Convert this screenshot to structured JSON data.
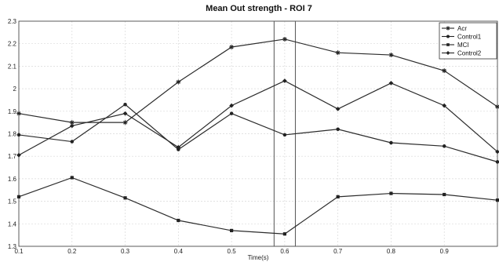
{
  "chart_data": {
    "type": "line",
    "title": "Mean Out strength - ROI 7",
    "xlabel": "Time(s)",
    "ylabel": "",
    "x": [
      0.1,
      0.2,
      0.3,
      0.4,
      0.5,
      0.6,
      0.7,
      0.8,
      0.9,
      1.0
    ],
    "xlim": [
      0.1,
      1.0
    ],
    "ylim": [
      1.3,
      2.3
    ],
    "xticks": [
      "0.1",
      "0.2",
      "0.3",
      "0.4",
      "0.5",
      "0.6",
      "0.7",
      "0.8",
      "0.9"
    ],
    "yticks": [
      "1.3",
      "1.4",
      "1.5",
      "1.6",
      "1.7",
      "1.8",
      "1.9",
      "2",
      "2.1",
      "2.2",
      "2.3"
    ],
    "grid": true,
    "legend_position": "top-right",
    "highlight_x_range": [
      0.58,
      0.62
    ],
    "series": [
      {
        "name": "Acr",
        "marker": "asterisk",
        "values": [
          1.89,
          1.85,
          1.85,
          2.03,
          2.185,
          2.22,
          2.16,
          2.15,
          2.08,
          1.92
        ]
      },
      {
        "name": "Control1",
        "marker": "circle",
        "values": [
          1.795,
          1.765,
          1.93,
          1.73,
          1.89,
          1.795,
          1.82,
          1.76,
          1.745,
          1.675
        ]
      },
      {
        "name": "MCI",
        "marker": "square",
        "values": [
          1.52,
          1.605,
          1.515,
          1.415,
          1.37,
          1.355,
          1.52,
          1.535,
          1.53,
          1.505
        ]
      },
      {
        "name": "Control2",
        "marker": "diamond",
        "values": [
          1.705,
          1.835,
          1.89,
          1.74,
          1.925,
          2.035,
          1.91,
          2.025,
          1.925,
          1.72
        ]
      }
    ]
  }
}
